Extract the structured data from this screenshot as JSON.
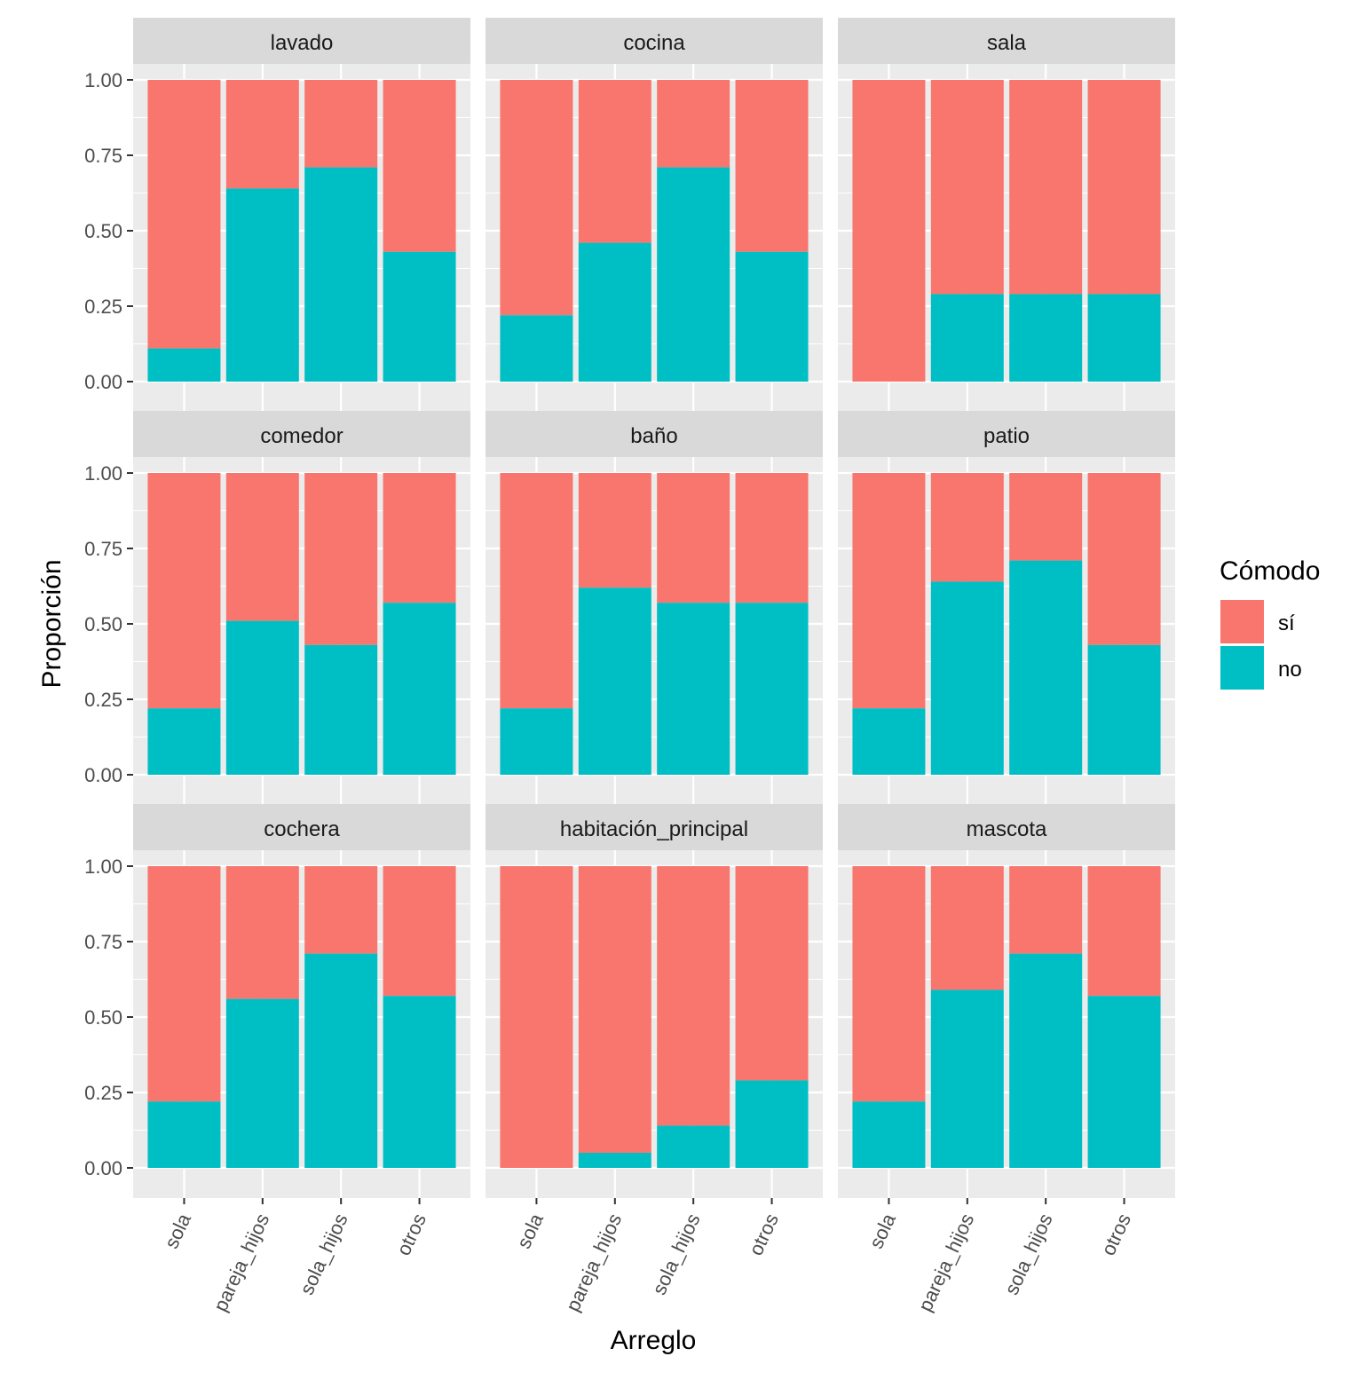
{
  "chart_data": {
    "type": "bar",
    "stacked": "fill",
    "xlabel": "Arreglo",
    "ylabel": "Proporción",
    "ylim": [
      0,
      1
    ],
    "y_ticks": [
      "0.00",
      "0.25",
      "0.50",
      "0.75",
      "1.00"
    ],
    "categories": [
      "sola",
      "pareja_hijos",
      "sola_hijos",
      "otros"
    ],
    "legend": {
      "title": "Cómodo",
      "position": "right",
      "entries": [
        {
          "label": "sí",
          "color": "#F8766D"
        },
        {
          "label": "no",
          "color": "#00BFC4"
        }
      ]
    },
    "colors": {
      "panel_background": "#EBEBEB",
      "strip_background": "#D9D9D9",
      "grid": "#FFFFFF"
    },
    "facets": [
      {
        "title": "lavado",
        "no": [
          0.11,
          0.64,
          0.71,
          0.43
        ]
      },
      {
        "title": "cocina",
        "no": [
          0.22,
          0.46,
          0.71,
          0.43
        ]
      },
      {
        "title": "sala",
        "no": [
          0.0,
          0.29,
          0.29,
          0.29
        ]
      },
      {
        "title": "comedor",
        "no": [
          0.22,
          0.51,
          0.43,
          0.57
        ]
      },
      {
        "title": "baño",
        "no": [
          0.22,
          0.62,
          0.57,
          0.57
        ]
      },
      {
        "title": "patio",
        "no": [
          0.22,
          0.64,
          0.71,
          0.43
        ]
      },
      {
        "title": "cochera",
        "no": [
          0.22,
          0.56,
          0.71,
          0.57
        ]
      },
      {
        "title": "habitación_principal",
        "no": [
          0.0,
          0.05,
          0.14,
          0.29
        ]
      },
      {
        "title": "mascota",
        "no": [
          0.22,
          0.59,
          0.71,
          0.57
        ]
      }
    ]
  }
}
